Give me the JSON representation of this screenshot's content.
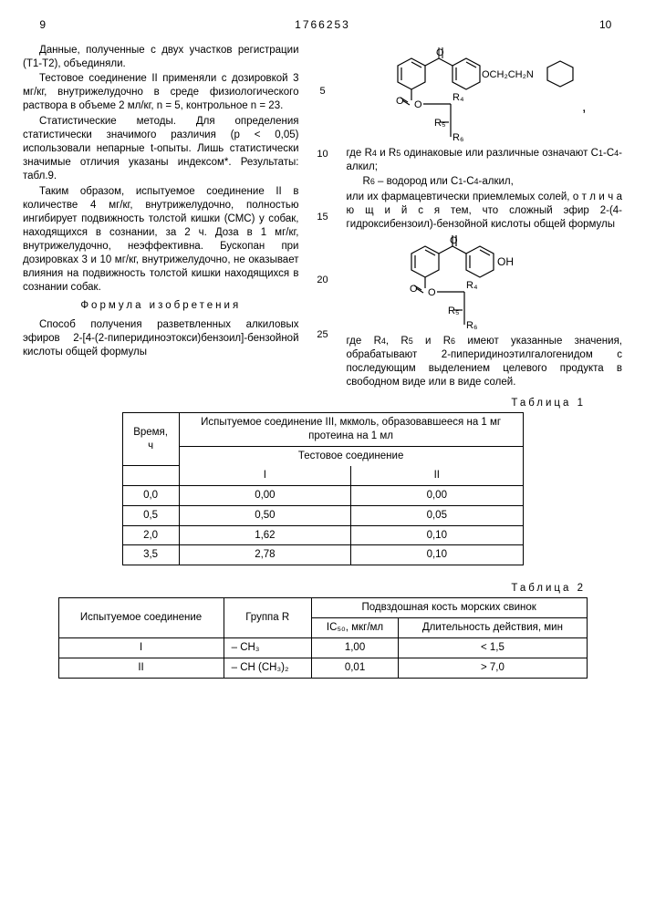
{
  "header": {
    "page_left": "9",
    "doc_number": "1766253",
    "page_right": "10"
  },
  "left_col": {
    "p1": "Данные, полученные с двух участков регистрации (T1-T2), объединяли.",
    "p2": "Тестовое соединение II применяли с дозировкой 3 мг/кг, внутрижелудочно в среде физиологического раствора в объеме 2 мл/кг, n = 5, контрольное n = 23.",
    "p3": "Статистические методы. Для определения статистически значимого различия (p < 0,05) использовали непарные t-опыты. Лишь статистически значимые отличия указаны индексом*. Результаты: табл.9.",
    "p4": "Таким образом, испытуемое соединение II в количестве 4 мг/кг, внутрижелудочно, полностью ингибирует подвижность толстой кишки (СМС) у собак, находящихся в сознании, за 2 ч. Доза в 1 мг/кг, внутрижелудочно, неэффективна. Бускопан при дозировках 3 и 10 мг/кг, внутрижелудочно, не оказывает влияния на подвижность толстой кишки находящихся в сознании собак.",
    "formula_label": "Формула изобретения",
    "p5": "Способ получения разветвленных алкиловых эфиров 2-[4-(2-пиперидиноэтокси)бензоил]-бензойной кислоты общей формулы"
  },
  "right_col": {
    "p1a": "где R",
    "p1b": " и R",
    "p1c": " одинаковые или различные означают С",
    "p1d": "-С",
    "p1e": "-алкил;",
    "p2a": "R",
    "p2b": " – водород или С",
    "p2c": "-С",
    "p2d": "-алкил,",
    "p3": "или их фармацевтически приемлемых солей, о т л и ч а ю щ и й с я  тем, что сложный эфир 2-(4-гидроксибензоил)-бензойной кислоты общей формулы",
    "p4a": "где R",
    "p4b": ", R",
    "p4c": " и R",
    "p4d": " имеют указанные значения, обрабатывают 2-пиперидиноэтилгалогенидом с последующим выделением целевого продукта в свободном виде или в виде солей."
  },
  "line_nums": {
    "n5": "5",
    "n10": "10",
    "n15": "15",
    "n20": "20",
    "n25": "25"
  },
  "table1": {
    "label": "Таблица 1",
    "h_time": "Время, ч",
    "h_compound": "Испытуемое соединение III, мкмоль, образовавшееся на 1 мг протеина на 1 мл",
    "h_test": "Тестовое   соединение",
    "h_I": "I",
    "h_II": "II",
    "rows": [
      [
        "0,0",
        "0,00",
        "0,00"
      ],
      [
        "0,5",
        "0,50",
        "0,05"
      ],
      [
        "2,0",
        "1,62",
        "0,10"
      ],
      [
        "3,5",
        "2,78",
        "0,10"
      ]
    ]
  },
  "table2": {
    "label": "Таблица 2",
    "h_compound": "Испытуемое соединение",
    "h_group": "Группа R",
    "h_ileum": "Подвздошная кость морских свинок",
    "h_ic50": "IC₅₀, мкг/мл",
    "h_duration": "Длительность действия, мин",
    "rows": [
      [
        "I",
        "– CH₃",
        "1,00",
        "< 1,5"
      ],
      [
        "II",
        "– CH (CH₃)₂",
        "0,01",
        "> 7,0"
      ]
    ]
  }
}
